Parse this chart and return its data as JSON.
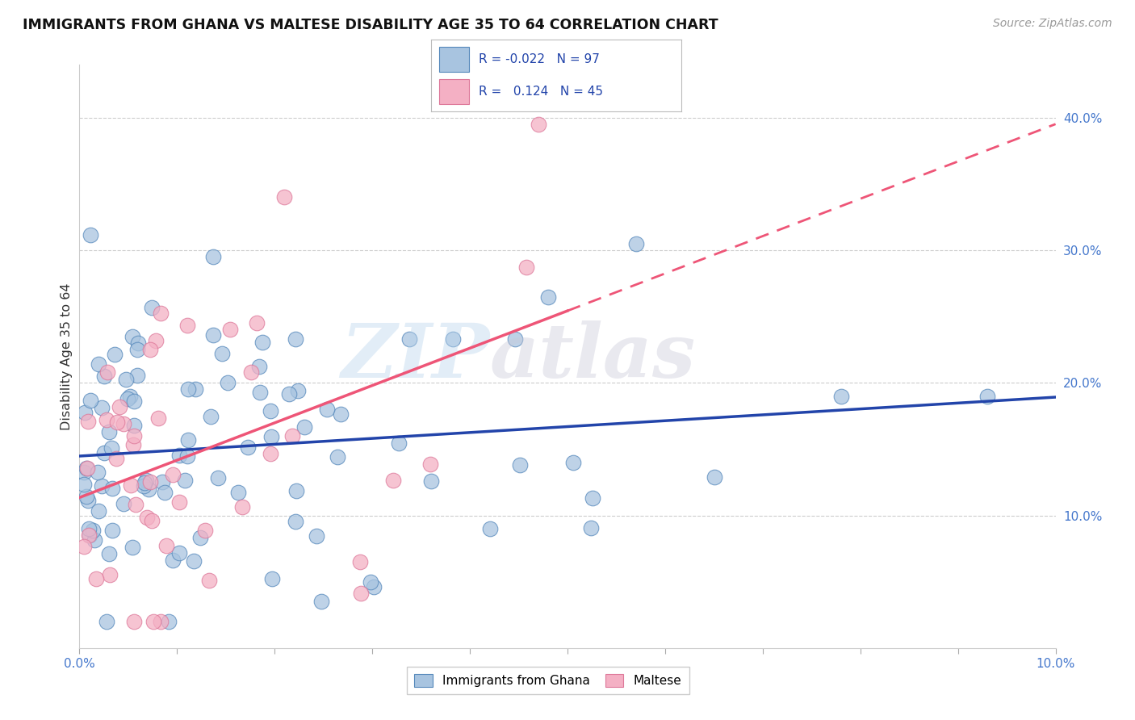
{
  "title": "IMMIGRANTS FROM GHANA VS MALTESE DISABILITY AGE 35 TO 64 CORRELATION CHART",
  "source": "Source: ZipAtlas.com",
  "ylabel": "Disability Age 35 to 64",
  "ylabel_right_ticks": [
    "40.0%",
    "30.0%",
    "20.0%",
    "10.0%"
  ],
  "ylabel_right_vals": [
    0.4,
    0.3,
    0.2,
    0.1
  ],
  "xlim": [
    0.0,
    0.1
  ],
  "ylim": [
    0.0,
    0.44
  ],
  "ghana_R": -0.022,
  "ghana_N": 97,
  "maltese_R": 0.124,
  "maltese_N": 45,
  "ghana_color": "#a8c4e0",
  "ghana_edge": "#5588bb",
  "maltese_color": "#f4b0c4",
  "maltese_edge": "#dd7799",
  "ghana_line_color": "#2244aa",
  "maltese_line_color": "#ee5577",
  "ghana_seed": 42,
  "maltese_seed": 7
}
